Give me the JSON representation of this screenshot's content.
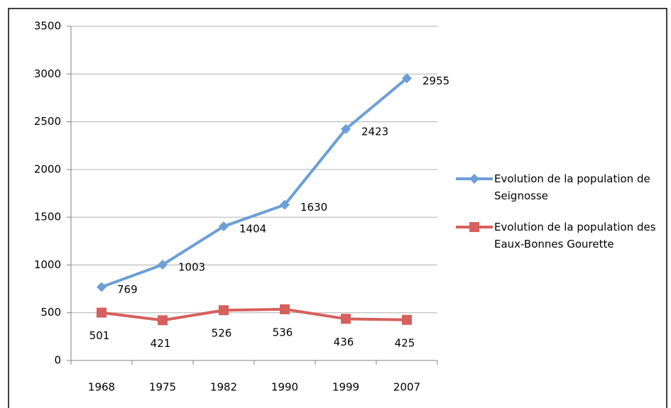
{
  "chart_data": {
    "type": "line",
    "categories": [
      "1968",
      "1975",
      "1982",
      "1990",
      "1999",
      "2007"
    ],
    "series": [
      {
        "name": "Evolution de la population de Seignosse",
        "color": "#6d9fd6",
        "marker": "diamond",
        "values": [
          769,
          1003,
          1404,
          1630,
          2423,
          2955
        ]
      },
      {
        "name": "Evolution de la population des Eaux-Bonnes Gourette",
        "color": "#d6605d",
        "marker": "square",
        "values": [
          501,
          421,
          526,
          536,
          436,
          425
        ]
      }
    ],
    "ylim": [
      0,
      3500
    ],
    "yticks": [
      0,
      500,
      1000,
      1500,
      2000,
      2500,
      3000,
      3500
    ],
    "grid": true,
    "legend": "right"
  }
}
